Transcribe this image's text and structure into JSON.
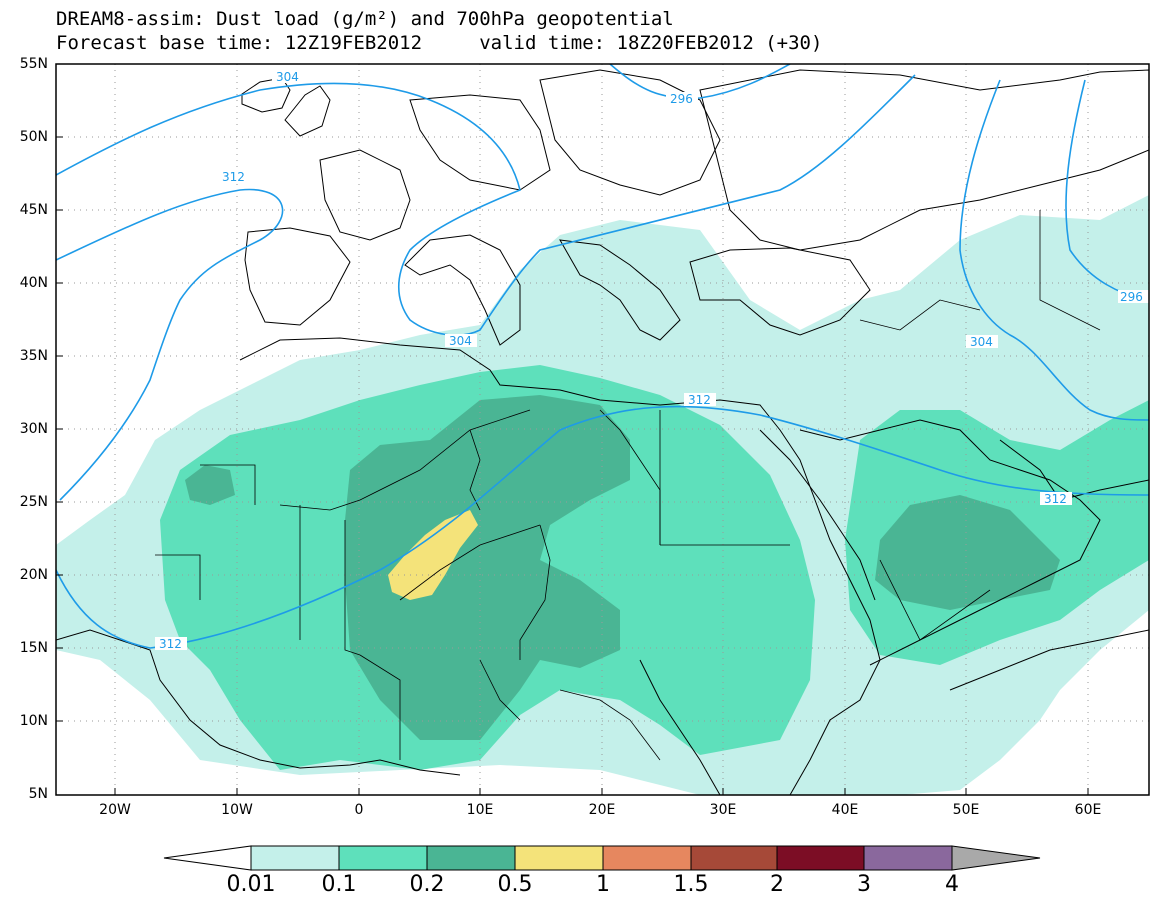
{
  "title": {
    "line1": "DREAM8-assim: Dust load (g/m²) and 700hPa geopotential",
    "line2": "Forecast base time: 12Z19FEB2012     valid time: 18Z20FEB2012 (+30)"
  },
  "map": {
    "lon_range": [
      -25,
      65
    ],
    "lat_range": [
      5,
      55
    ],
    "lat_ticks": [
      "55N",
      "50N",
      "45N",
      "40N",
      "35N",
      "30N",
      "25N",
      "20N",
      "15N",
      "10N",
      "5N"
    ],
    "lon_ticks": [
      "20W",
      "10W",
      "0",
      "10E",
      "20E",
      "30E",
      "40E",
      "50E",
      "60E"
    ],
    "grid": true,
    "contour_labels": [
      "304",
      "296",
      "312",
      "312",
      "304",
      "312",
      "312",
      "304",
      "296",
      "312"
    ]
  },
  "colorbar": {
    "labels": [
      "0.01",
      "0.1",
      "0.2",
      "0.5",
      "1",
      "1.5",
      "2",
      "3",
      "4"
    ],
    "colors": [
      "#ffffff",
      "#c4f0ea",
      "#5ee0bb",
      "#4ab594",
      "#f4e37a",
      "#e6875f",
      "#a64938",
      "#7c0d25",
      "#8a689d",
      "#a9a9a9"
    ]
  },
  "colors": {
    "dust_lt": "#c4f0ea",
    "dust_md": "#5ee0bb",
    "dust_dk": "#4ab594",
    "dust_yl": "#f4e37a",
    "contour": "#1e9be8"
  }
}
